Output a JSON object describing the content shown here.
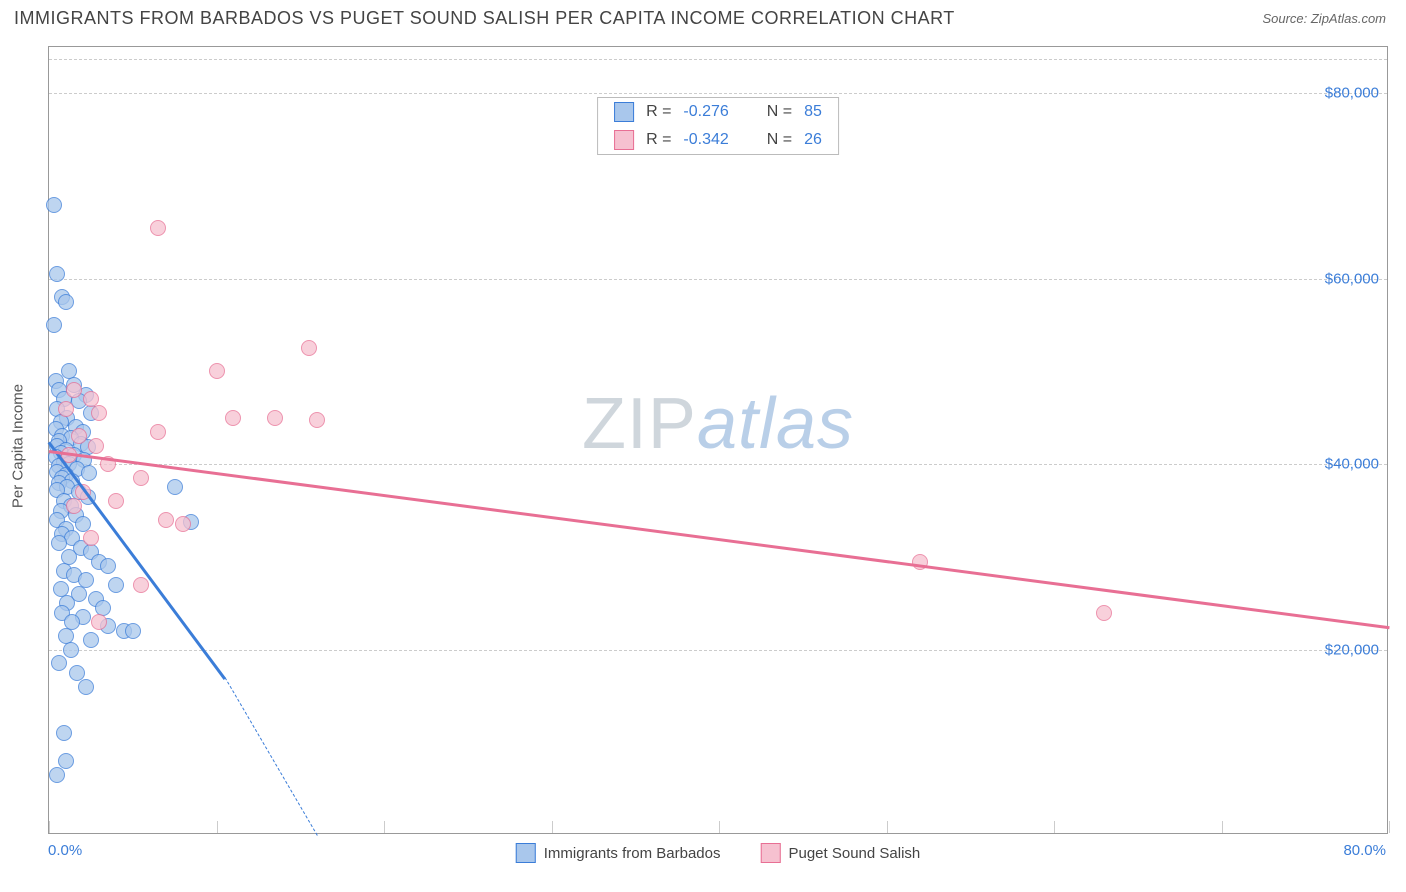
{
  "title": "IMMIGRANTS FROM BARBADOS VS PUGET SOUND SALISH PER CAPITA INCOME CORRELATION CHART",
  "source": "Source: ZipAtlas.com",
  "ylabel": "Per Capita Income",
  "watermark": {
    "part1": "ZIP",
    "part2": "atlas"
  },
  "chart": {
    "type": "scatter",
    "xlim": [
      0,
      80
    ],
    "ylim": [
      0,
      85000
    ],
    "x_axis_label_min": "0.0%",
    "x_axis_label_max": "80.0%",
    "ytick_values": [
      20000,
      40000,
      60000,
      80000
    ],
    "ytick_labels": [
      "$20,000",
      "$40,000",
      "$60,000",
      "$80,000"
    ],
    "xtick_marks": [
      0,
      10,
      20,
      30,
      40,
      50,
      60,
      70,
      80
    ],
    "grid_color": "#cccccc",
    "background_color": "#ffffff",
    "point_radius": 8,
    "point_border_width": 1.2,
    "point_fill_opacity": 0.35,
    "series": [
      {
        "name": "Immigrants from Barbados",
        "color_border": "#3b7dd8",
        "color_fill": "#a9c7ec",
        "R": "-0.276",
        "N": "85",
        "trend": {
          "x1": 0,
          "y1": 42500,
          "x2": 10.5,
          "y2": 17000,
          "dash_to_x": 16,
          "dash_to_y": 0
        },
        "points": [
          [
            0.3,
            68000
          ],
          [
            0.5,
            60500
          ],
          [
            0.8,
            58000
          ],
          [
            1.0,
            57500
          ],
          [
            0.3,
            55000
          ],
          [
            1.2,
            50000
          ],
          [
            0.4,
            49000
          ],
          [
            1.5,
            48500
          ],
          [
            0.6,
            48000
          ],
          [
            2.2,
            47500
          ],
          [
            0.9,
            47000
          ],
          [
            1.8,
            46800
          ],
          [
            0.5,
            46000
          ],
          [
            2.5,
            45500
          ],
          [
            1.1,
            45000
          ],
          [
            0.7,
            44500
          ],
          [
            1.6,
            44000
          ],
          [
            0.4,
            43800
          ],
          [
            2.0,
            43500
          ],
          [
            0.8,
            43000
          ],
          [
            1.3,
            42800
          ],
          [
            0.6,
            42500
          ],
          [
            1.9,
            42200
          ],
          [
            0.5,
            42000
          ],
          [
            2.3,
            41800
          ],
          [
            1.0,
            41500
          ],
          [
            0.7,
            41200
          ],
          [
            1.5,
            41000
          ],
          [
            0.4,
            40800
          ],
          [
            2.1,
            40500
          ],
          [
            0.9,
            40200
          ],
          [
            1.2,
            40000
          ],
          [
            0.6,
            39800
          ],
          [
            1.7,
            39500
          ],
          [
            0.5,
            39200
          ],
          [
            2.4,
            39000
          ],
          [
            1.0,
            38800
          ],
          [
            0.8,
            38500
          ],
          [
            1.4,
            38200
          ],
          [
            0.6,
            38000
          ],
          [
            7.5,
            37500
          ],
          [
            1.1,
            37500
          ],
          [
            0.5,
            37200
          ],
          [
            1.8,
            37000
          ],
          [
            2.3,
            36500
          ],
          [
            0.9,
            36000
          ],
          [
            1.3,
            35500
          ],
          [
            0.7,
            35000
          ],
          [
            1.6,
            34500
          ],
          [
            0.5,
            34000
          ],
          [
            8.5,
            33800
          ],
          [
            2.0,
            33500
          ],
          [
            1.0,
            33000
          ],
          [
            0.8,
            32500
          ],
          [
            1.4,
            32000
          ],
          [
            0.6,
            31500
          ],
          [
            1.9,
            31000
          ],
          [
            2.5,
            30500
          ],
          [
            1.2,
            30000
          ],
          [
            3.0,
            29500
          ],
          [
            3.5,
            29000
          ],
          [
            0.9,
            28500
          ],
          [
            1.5,
            28000
          ],
          [
            2.2,
            27500
          ],
          [
            4.0,
            27000
          ],
          [
            0.7,
            26500
          ],
          [
            1.8,
            26000
          ],
          [
            2.8,
            25500
          ],
          [
            1.1,
            25000
          ],
          [
            3.2,
            24500
          ],
          [
            0.8,
            24000
          ],
          [
            2.0,
            23500
          ],
          [
            1.4,
            23000
          ],
          [
            3.5,
            22500
          ],
          [
            4.5,
            22000
          ],
          [
            1.0,
            21500
          ],
          [
            2.5,
            21000
          ],
          [
            5.0,
            22000
          ],
          [
            1.3,
            20000
          ],
          [
            0.6,
            18500
          ],
          [
            1.7,
            17500
          ],
          [
            2.2,
            16000
          ],
          [
            0.9,
            11000
          ],
          [
            1.0,
            8000
          ],
          [
            0.5,
            6500
          ]
        ]
      },
      {
        "name": "Puget Sound Salish",
        "color_border": "#e86f94",
        "color_fill": "#f6c1d0",
        "R": "-0.342",
        "N": "26",
        "trend": {
          "x1": 0,
          "y1": 41500,
          "x2": 80,
          "y2": 22500
        },
        "points": [
          [
            6.5,
            65500
          ],
          [
            15.5,
            52500
          ],
          [
            10.0,
            50000
          ],
          [
            1.5,
            48000
          ],
          [
            2.5,
            47000
          ],
          [
            1.0,
            46000
          ],
          [
            3.0,
            45500
          ],
          [
            11.0,
            45000
          ],
          [
            13.5,
            45000
          ],
          [
            16.0,
            44800
          ],
          [
            6.5,
            43500
          ],
          [
            1.8,
            43000
          ],
          [
            2.8,
            42000
          ],
          [
            1.2,
            41000
          ],
          [
            3.5,
            40000
          ],
          [
            5.5,
            38500
          ],
          [
            2.0,
            37000
          ],
          [
            4.0,
            36000
          ],
          [
            1.5,
            35500
          ],
          [
            7.0,
            34000
          ],
          [
            8.0,
            33500
          ],
          [
            2.5,
            32000
          ],
          [
            52.0,
            29500
          ],
          [
            5.5,
            27000
          ],
          [
            63.0,
            24000
          ],
          [
            3.0,
            23000
          ]
        ]
      }
    ]
  },
  "legend_top": [
    {
      "swatch": 0,
      "R_label": "R =",
      "R_val": "-0.276",
      "N_label": "N =",
      "N_val": "85"
    },
    {
      "swatch": 1,
      "R_label": "R =",
      "R_val": "-0.342",
      "N_label": "N =",
      "N_val": "26"
    }
  ]
}
